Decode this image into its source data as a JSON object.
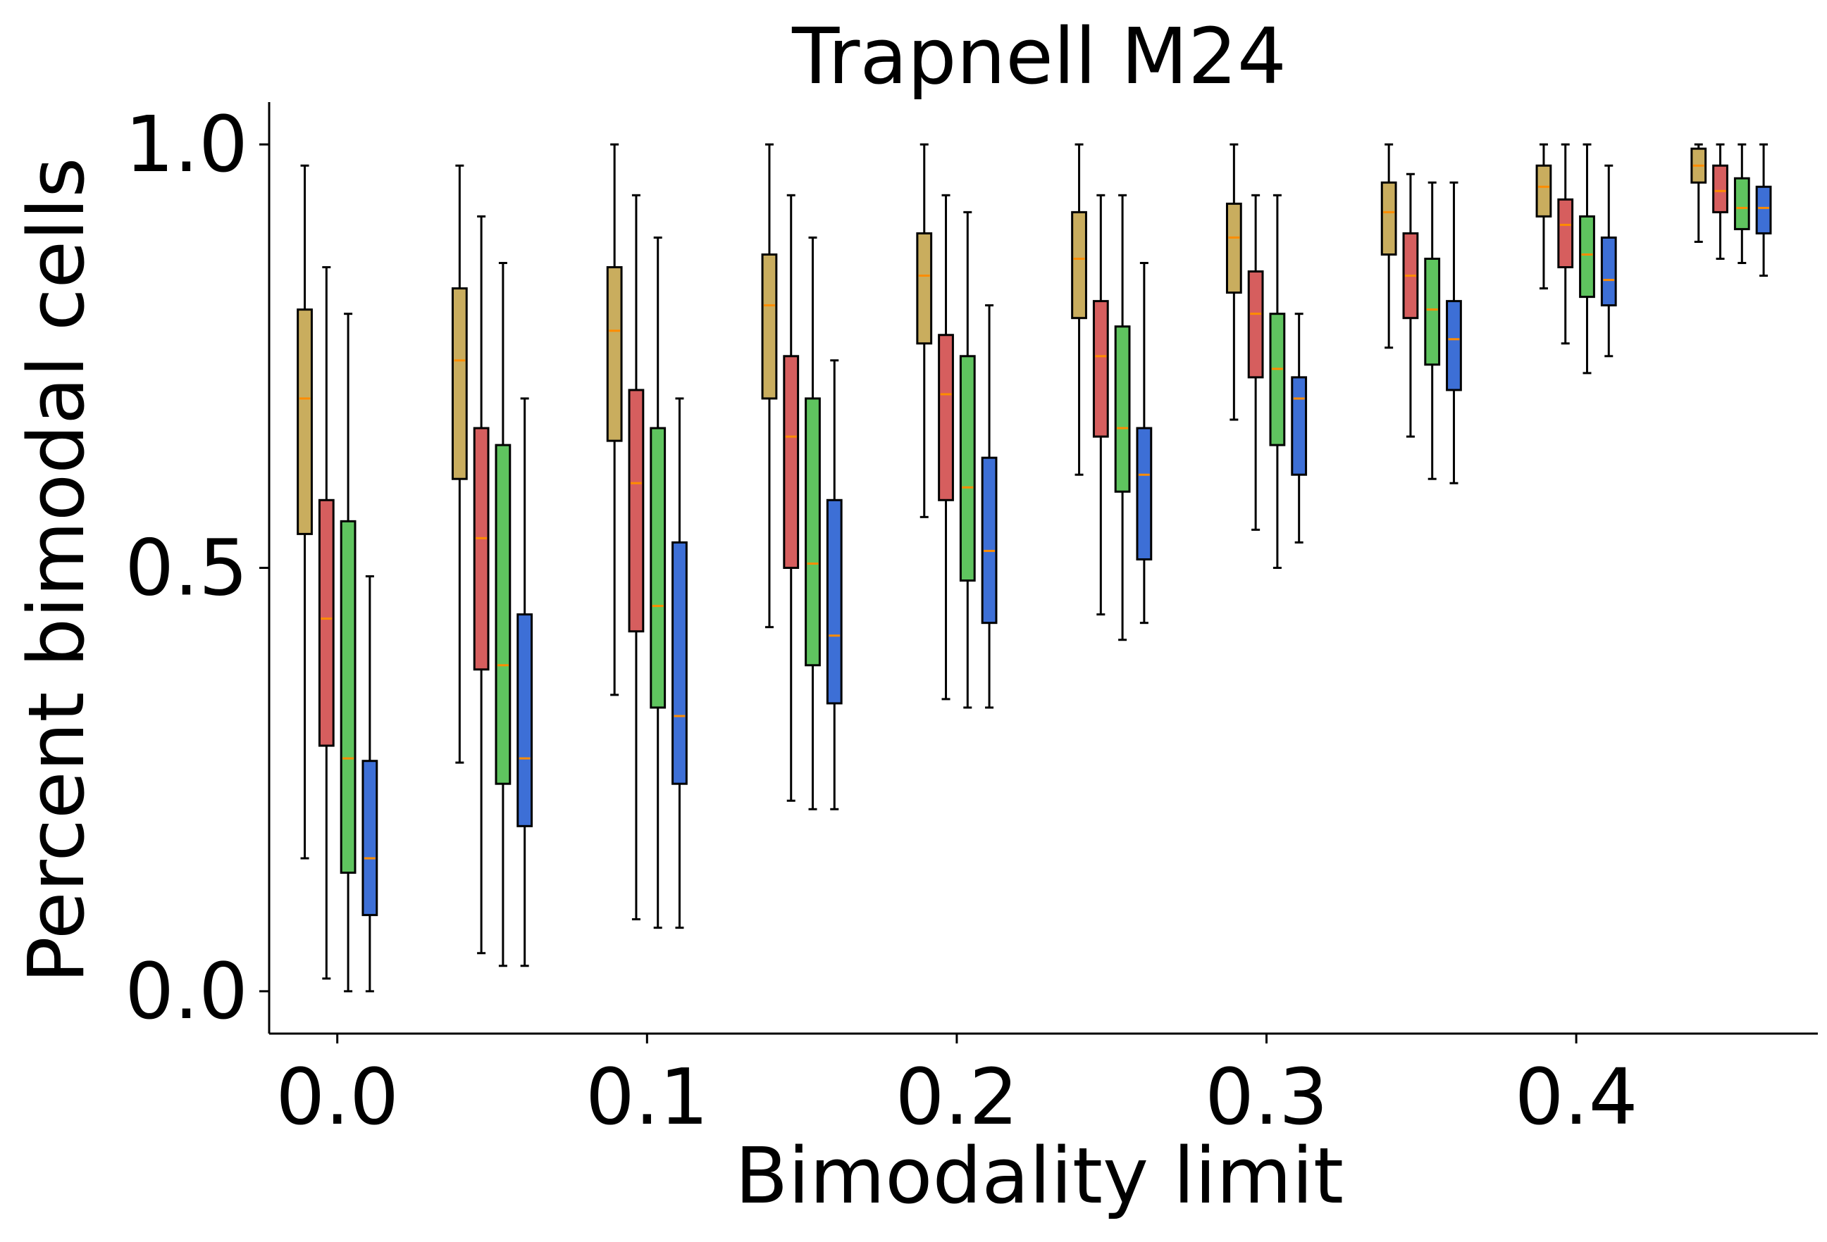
{
  "chart_data": {
    "type": "box",
    "title": "Trapnell M24",
    "xlabel": "Bimodality limit",
    "ylabel": "Percent bimodal cells",
    "xlim": [
      -0.022,
      0.478
    ],
    "ylim": [
      -0.05,
      1.05
    ],
    "x_ticks": [
      0.0,
      0.1,
      0.2,
      0.3,
      0.4
    ],
    "x_tick_labels": [
      "0.0",
      "0.1",
      "0.2",
      "0.3",
      "0.4"
    ],
    "y_ticks": [
      0.0,
      0.5,
      1.0
    ],
    "y_tick_labels": [
      "0.0",
      "0.5",
      "1.0"
    ],
    "group_positions": [
      0.0,
      0.05,
      0.1,
      0.15,
      0.2,
      0.25,
      0.3,
      0.35,
      0.4,
      0.45
    ],
    "series_offsets": [
      -0.0105,
      -0.0035,
      0.0035,
      0.0105
    ],
    "box_width": 0.0045,
    "grid": false,
    "series": [
      {
        "color": "#c9ad5e",
        "boxes": [
          {
            "whislo": 0.157,
            "q1": 0.54,
            "med": 0.7,
            "q3": 0.805,
            "whishi": 0.975
          },
          {
            "whislo": 0.27,
            "q1": 0.605,
            "med": 0.745,
            "q3": 0.83,
            "whishi": 0.975
          },
          {
            "whislo": 0.35,
            "q1": 0.65,
            "med": 0.78,
            "q3": 0.855,
            "whishi": 1.0
          },
          {
            "whislo": 0.43,
            "q1": 0.7,
            "med": 0.81,
            "q3": 0.87,
            "whishi": 1.0
          },
          {
            "whislo": 0.56,
            "q1": 0.765,
            "med": 0.845,
            "q3": 0.895,
            "whishi": 1.0
          },
          {
            "whislo": 0.61,
            "q1": 0.795,
            "med": 0.865,
            "q3": 0.92,
            "whishi": 1.0
          },
          {
            "whislo": 0.675,
            "q1": 0.825,
            "med": 0.89,
            "q3": 0.93,
            "whishi": 1.0
          },
          {
            "whislo": 0.76,
            "q1": 0.87,
            "med": 0.92,
            "q3": 0.955,
            "whishi": 1.0
          },
          {
            "whislo": 0.83,
            "q1": 0.915,
            "med": 0.95,
            "q3": 0.975,
            "whishi": 1.0
          },
          {
            "whislo": 0.885,
            "q1": 0.955,
            "med": 0.975,
            "q3": 0.995,
            "whishi": 1.0
          }
        ]
      },
      {
        "color": "#d65e5e",
        "boxes": [
          {
            "whislo": 0.015,
            "q1": 0.29,
            "med": 0.44,
            "q3": 0.58,
            "whishi": 0.855
          },
          {
            "whislo": 0.045,
            "q1": 0.38,
            "med": 0.535,
            "q3": 0.665,
            "whishi": 0.915
          },
          {
            "whislo": 0.085,
            "q1": 0.425,
            "med": 0.6,
            "q3": 0.71,
            "whishi": 0.94
          },
          {
            "whislo": 0.225,
            "q1": 0.5,
            "med": 0.655,
            "q3": 0.75,
            "whishi": 0.94
          },
          {
            "whislo": 0.345,
            "q1": 0.58,
            "med": 0.705,
            "q3": 0.775,
            "whishi": 0.94
          },
          {
            "whislo": 0.445,
            "q1": 0.655,
            "med": 0.75,
            "q3": 0.815,
            "whishi": 0.94
          },
          {
            "whislo": 0.545,
            "q1": 0.725,
            "med": 0.8,
            "q3": 0.85,
            "whishi": 0.94
          },
          {
            "whislo": 0.655,
            "q1": 0.795,
            "med": 0.845,
            "q3": 0.895,
            "whishi": 0.965
          },
          {
            "whislo": 0.765,
            "q1": 0.855,
            "med": 0.905,
            "q3": 0.935,
            "whishi": 1.0
          },
          {
            "whislo": 0.865,
            "q1": 0.92,
            "med": 0.945,
            "q3": 0.975,
            "whishi": 1.0
          }
        ]
      },
      {
        "color": "#5fc45f",
        "boxes": [
          {
            "whislo": 0.0,
            "q1": 0.14,
            "med": 0.275,
            "q3": 0.555,
            "whishi": 0.8
          },
          {
            "whislo": 0.03,
            "q1": 0.245,
            "med": 0.385,
            "q3": 0.645,
            "whishi": 0.86
          },
          {
            "whislo": 0.075,
            "q1": 0.335,
            "med": 0.455,
            "q3": 0.665,
            "whishi": 0.89
          },
          {
            "whislo": 0.215,
            "q1": 0.385,
            "med": 0.505,
            "q3": 0.7,
            "whishi": 0.89
          },
          {
            "whislo": 0.335,
            "q1": 0.485,
            "med": 0.595,
            "q3": 0.75,
            "whishi": 0.92
          },
          {
            "whislo": 0.415,
            "q1": 0.59,
            "med": 0.665,
            "q3": 0.785,
            "whishi": 0.94
          },
          {
            "whislo": 0.5,
            "q1": 0.645,
            "med": 0.735,
            "q3": 0.8,
            "whishi": 0.94
          },
          {
            "whislo": 0.605,
            "q1": 0.74,
            "med": 0.805,
            "q3": 0.865,
            "whishi": 0.955
          },
          {
            "whislo": 0.73,
            "q1": 0.82,
            "med": 0.87,
            "q3": 0.915,
            "whishi": 1.0
          },
          {
            "whislo": 0.86,
            "q1": 0.9,
            "med": 0.925,
            "q3": 0.96,
            "whishi": 1.0
          }
        ]
      },
      {
        "color": "#3d6fd6",
        "boxes": [
          {
            "whislo": 0.0,
            "q1": 0.09,
            "med": 0.157,
            "q3": 0.272,
            "whishi": 0.49
          },
          {
            "whislo": 0.03,
            "q1": 0.195,
            "med": 0.275,
            "q3": 0.445,
            "whishi": 0.7
          },
          {
            "whislo": 0.075,
            "q1": 0.245,
            "med": 0.325,
            "q3": 0.53,
            "whishi": 0.7
          },
          {
            "whislo": 0.215,
            "q1": 0.34,
            "med": 0.42,
            "q3": 0.58,
            "whishi": 0.745
          },
          {
            "whislo": 0.335,
            "q1": 0.435,
            "med": 0.52,
            "q3": 0.63,
            "whishi": 0.81
          },
          {
            "whislo": 0.435,
            "q1": 0.51,
            "med": 0.61,
            "q3": 0.665,
            "whishi": 0.86
          },
          {
            "whislo": 0.53,
            "q1": 0.61,
            "med": 0.7,
            "q3": 0.725,
            "whishi": 0.8
          },
          {
            "whislo": 0.6,
            "q1": 0.71,
            "med": 0.77,
            "q3": 0.815,
            "whishi": 0.955
          },
          {
            "whislo": 0.75,
            "q1": 0.81,
            "med": 0.84,
            "q3": 0.89,
            "whishi": 0.975
          },
          {
            "whislo": 0.845,
            "q1": 0.895,
            "med": 0.925,
            "q3": 0.95,
            "whishi": 1.0
          }
        ]
      }
    ]
  }
}
